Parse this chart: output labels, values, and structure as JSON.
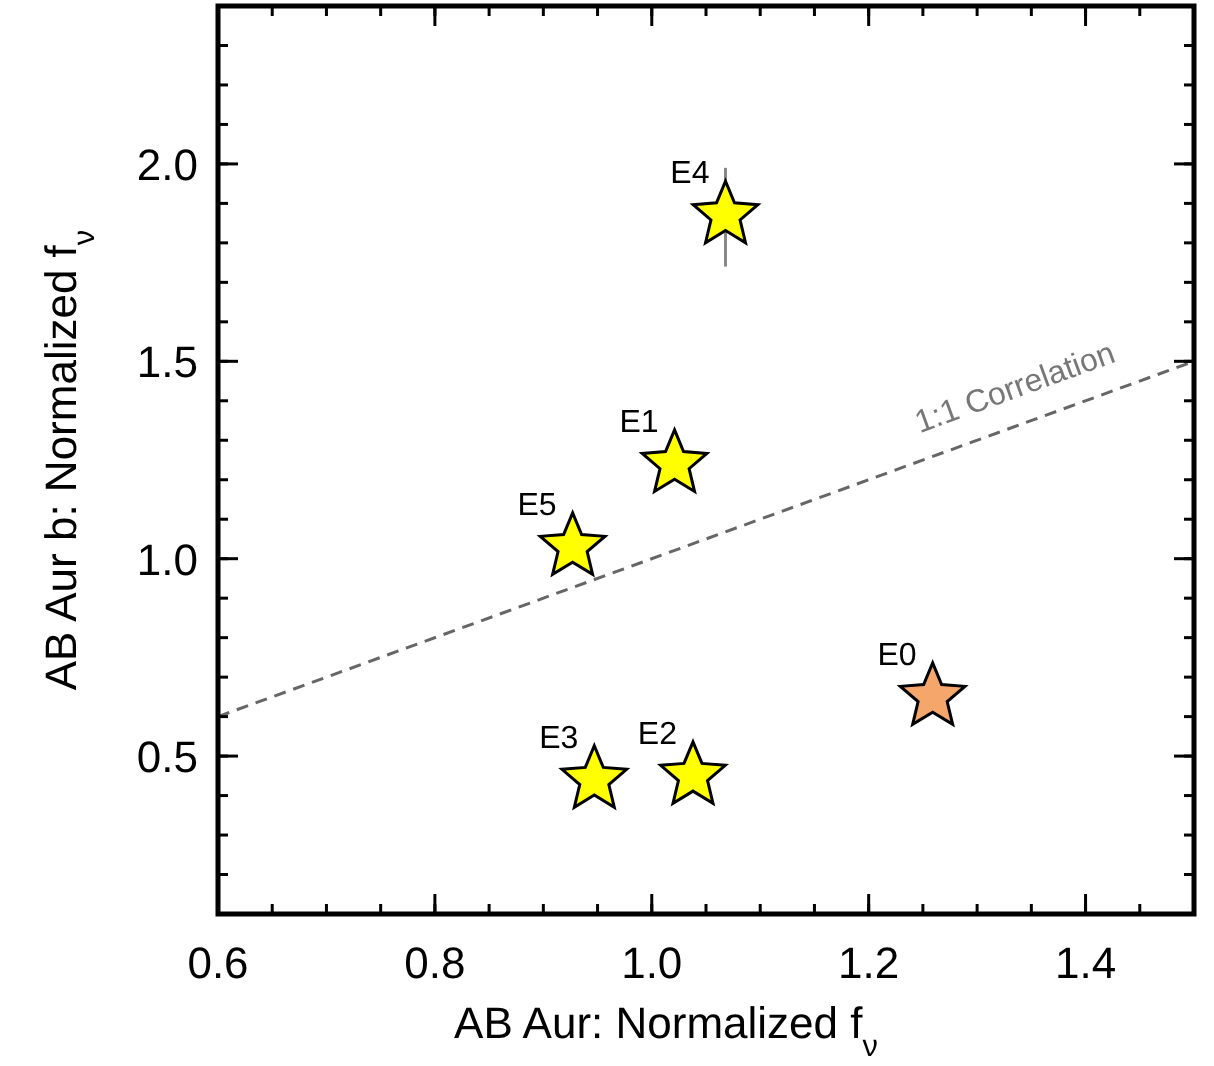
{
  "chart_data": {
    "type": "scatter",
    "xlabel": "AB Aur: Normalized f$_{ν}$",
    "ylabel": "AB Aur b: Normalized f$_{ν}$",
    "xlim": [
      0.6,
      1.5
    ],
    "xticks": [
      0.6,
      0.8,
      {
        "value": 1,
        "label": "1.0"
      },
      1.2,
      1.4
    ],
    "ylim": [
      0.1,
      2.4
    ],
    "yticks": [
      0.5,
      {
        "value": 1,
        "label": "1.0"
      },
      1.5,
      {
        "value": 2,
        "label": "2.0"
      }
    ],
    "grid": false,
    "series": [
      {
        "marker": "star",
        "x": [
          1.259,
          1.021,
          1.038,
          0.947,
          1.068,
          0.927
        ],
        "values": [
          0.65,
          1.24,
          0.45,
          0.44,
          1.87,
          1.03
        ],
        "colors": [
          "#f5a66b",
          "#ffff00",
          "#ffff00",
          "#ffff00",
          "#ffff00",
          "#ffff00"
        ],
        "errors": [
          null,
          null,
          null,
          null,
          [
            1.74,
            1.99
          ],
          null
        ]
      },
      {
        "type": "line",
        "x": [
          0.6,
          1.5
        ],
        "values": [
          0.6,
          1.5
        ],
        "color": "#666666",
        "line_style": "dashed"
      }
    ],
    "annotations": [
      {
        "text": "E0",
        "x": 1.259,
        "y": 0.65
      },
      {
        "text": "E1",
        "x": 1.021,
        "y": 1.24
      },
      {
        "text": "E2",
        "x": 1.038,
        "y": 0.45
      },
      {
        "text": "E3",
        "x": 0.947,
        "y": 0.44
      },
      {
        "text": "E4",
        "x": 1.068,
        "y": 1.87
      },
      {
        "text": "E5",
        "x": 0.927,
        "y": 1.03
      },
      "1:1 Correlation"
    ]
  }
}
